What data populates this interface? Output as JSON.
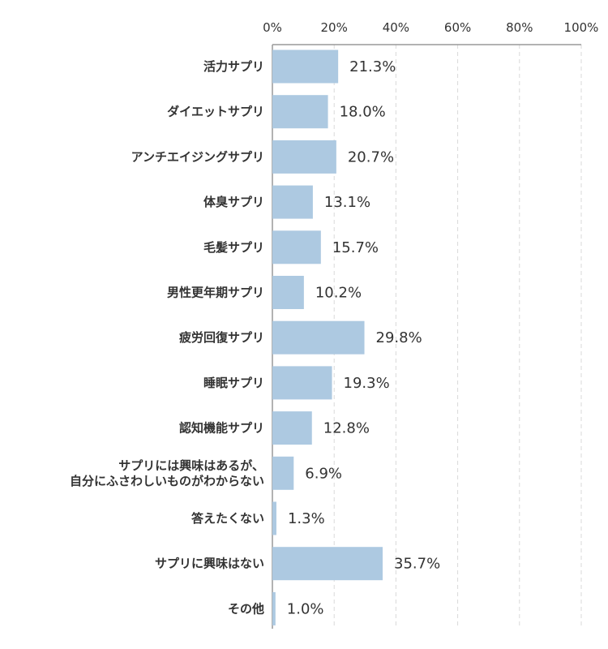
{
  "chart_data": {
    "type": "bar",
    "orientation": "horizontal",
    "xlim": [
      0,
      100
    ],
    "x_ticks": [
      "0%",
      "20%",
      "40%",
      "60%",
      "80%",
      "100%"
    ],
    "grid": "vertical dashed",
    "bar_color": "#adc9e1",
    "categories": [
      [
        "活力サプリ"
      ],
      [
        "ダイエットサプリ"
      ],
      [
        "アンチエイジングサプリ"
      ],
      [
        "体臭サプリ"
      ],
      [
        "毛髪サプリ"
      ],
      [
        "男性更年期サプリ"
      ],
      [
        "疲労回復サプリ"
      ],
      [
        "睡眠サプリ"
      ],
      [
        "認知機能サプリ"
      ],
      [
        "サプリには興味はあるが、",
        "自分にふさわしいものがわからない"
      ],
      [
        "答えたくない"
      ],
      [
        "サプリに興味はない"
      ],
      [
        "その他"
      ]
    ],
    "values": [
      21.3,
      18.0,
      20.7,
      13.1,
      15.7,
      10.2,
      29.8,
      19.3,
      12.8,
      6.9,
      1.3,
      35.7,
      1.0
    ],
    "value_labels": [
      "21.3%",
      "18.0%",
      "20.7%",
      "13.1%",
      "15.7%",
      "10.2%",
      "29.8%",
      "19.3%",
      "12.8%",
      "6.9%",
      "1.3%",
      "35.7%",
      "1.0%"
    ]
  }
}
